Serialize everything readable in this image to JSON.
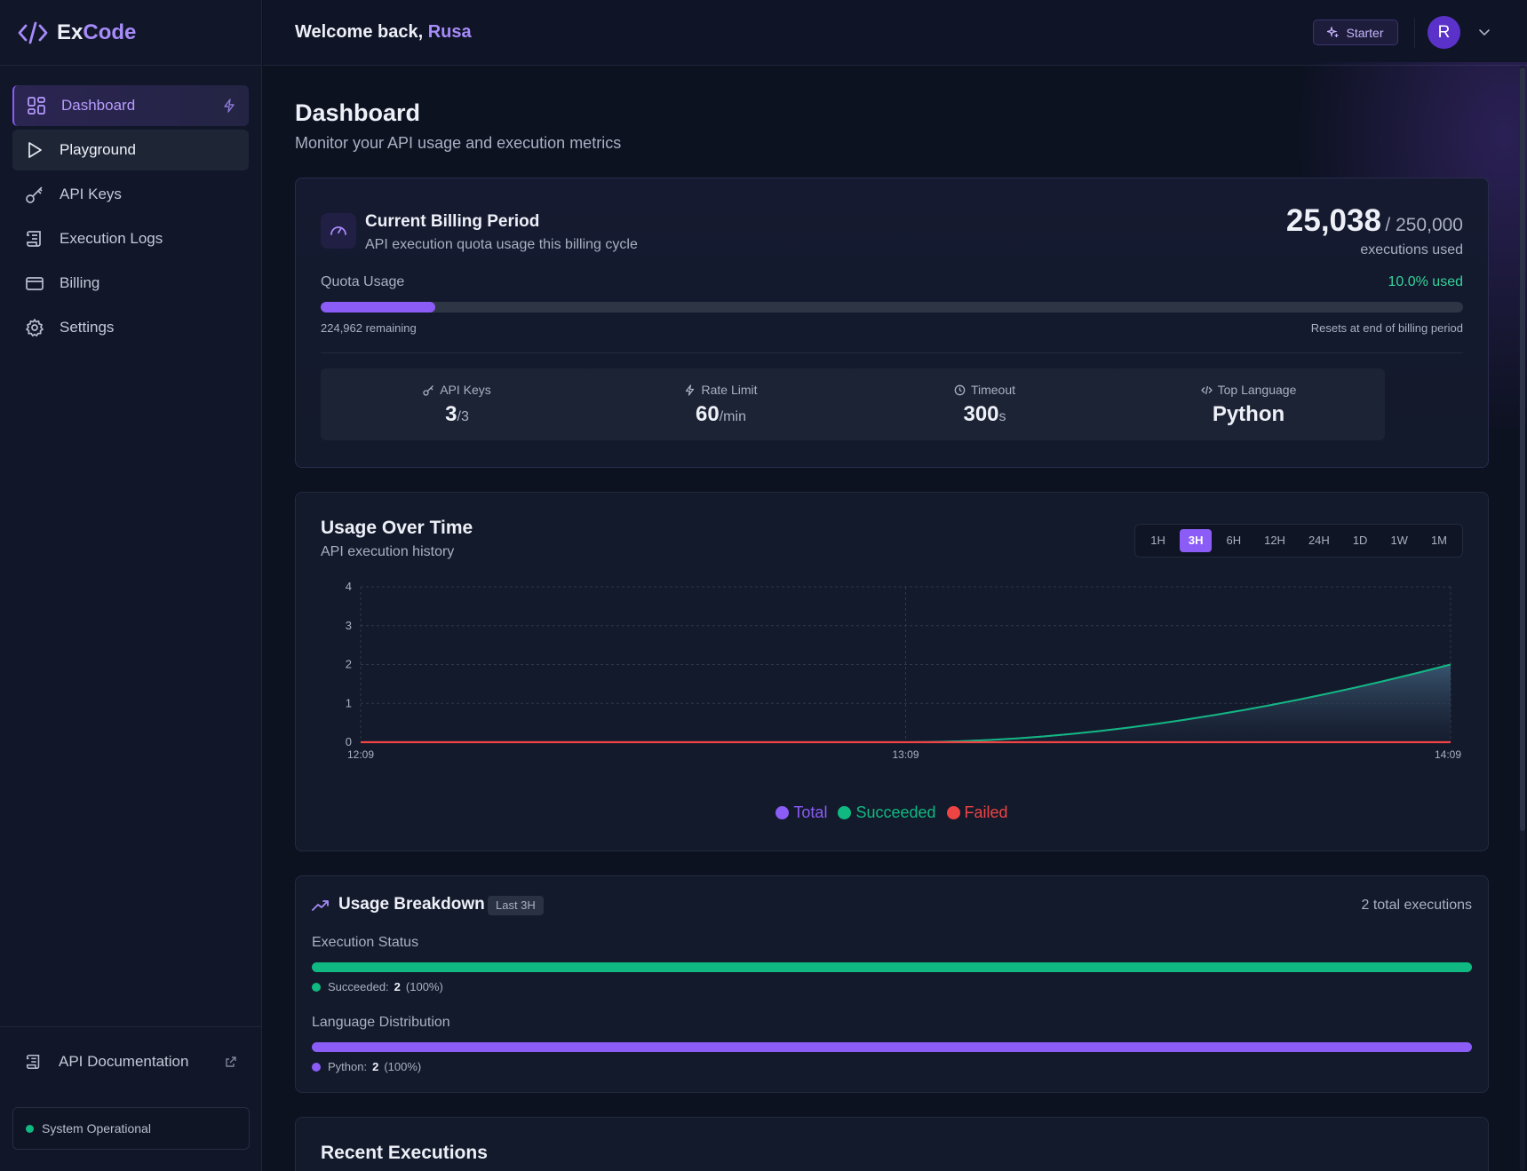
{
  "app": {
    "name_prefix": "Ex",
    "name_accent": "Code"
  },
  "sidebar": {
    "items": [
      {
        "label": "Dashboard",
        "icon": "dashboard-icon"
      },
      {
        "label": "Playground",
        "icon": "play-icon"
      },
      {
        "label": "API Keys",
        "icon": "key-icon"
      },
      {
        "label": "Execution Logs",
        "icon": "scroll-icon"
      },
      {
        "label": "Billing",
        "icon": "credit-card-icon"
      },
      {
        "label": "Settings",
        "icon": "gear-icon"
      }
    ],
    "docs_label": "API Documentation",
    "status": "System Operational"
  },
  "header": {
    "welcome": "Welcome back,",
    "user": "Rusa",
    "plan": "Starter",
    "avatar_initial": "R"
  },
  "page": {
    "title": "Dashboard",
    "subtitle": "Monitor your API usage and execution metrics"
  },
  "billing": {
    "title": "Current Billing Period",
    "subtitle": "API execution quota usage this billing cycle",
    "used": "25,038",
    "total": "/ 250,000",
    "used_label": "executions used",
    "quota_label": "Quota Usage",
    "quota_pct": "10.0% used",
    "quota_fraction": 0.1,
    "remaining": "224,962 remaining",
    "reset_note": "Resets at end of billing period",
    "stats": [
      {
        "label": "API Keys",
        "value": "3",
        "unit": "/3"
      },
      {
        "label": "Rate Limit",
        "value": "60",
        "unit": "/min"
      },
      {
        "label": "Timeout",
        "value": "300",
        "unit": "s"
      },
      {
        "label": "Top Language",
        "value": "Python",
        "unit": ""
      }
    ]
  },
  "usage": {
    "title": "Usage Over Time",
    "subtitle": "API execution history",
    "ranges": [
      "1H",
      "3H",
      "6H",
      "12H",
      "24H",
      "1D",
      "1W",
      "1M"
    ],
    "active_range": "3H"
  },
  "chart_data": {
    "type": "area",
    "x": [
      "12:09",
      "13:09",
      "14:09"
    ],
    "ylim": [
      0,
      4
    ],
    "y_ticks": [
      "0",
      "1",
      "2",
      "3",
      "4"
    ],
    "series": [
      {
        "name": "Total",
        "color": "#8b5cf6",
        "values": [
          0,
          0,
          2
        ]
      },
      {
        "name": "Succeeded",
        "color": "#10b981",
        "values": [
          0,
          0,
          2
        ]
      },
      {
        "name": "Failed",
        "color": "#ef4444",
        "values": [
          0,
          0,
          0
        ]
      }
    ],
    "grid": true,
    "legend": "bottom"
  },
  "breakdown": {
    "title": "Usage Breakdown",
    "badge": "Last 3H",
    "total": "2 total executions",
    "status_title": "Execution Status",
    "status_legend_label": "Succeeded:",
    "status_count": "2",
    "status_pct": "(100%)",
    "language_title": "Language Distribution",
    "language_legend_label": "Python:",
    "language_count": "2",
    "language_pct": "(100%)",
    "success_color": "#10b981",
    "language_color": "#8b5cf6"
  },
  "recent": {
    "title": "Recent Executions"
  }
}
